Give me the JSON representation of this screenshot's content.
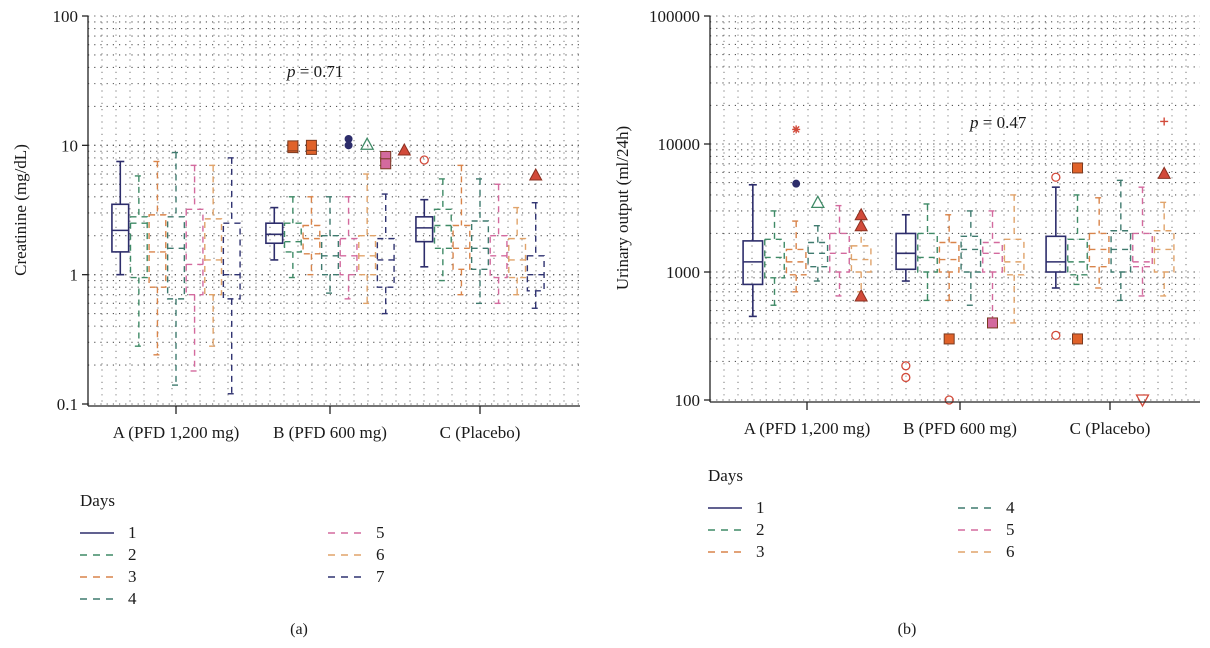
{
  "colors": {
    "day1": "#2d2d6b",
    "day2": "#3f8a66",
    "day3": "#d9844a",
    "day4": "#3f7a6e",
    "day5": "#d36a9e",
    "day6": "#e0a36a",
    "day7": "#2f3270",
    "outlier_red": "#d24a3a",
    "outlier_orange": "#e0622a"
  },
  "chart_data": [
    {
      "type": "box",
      "panel": "(a)",
      "ylabel": "Creatinine (mg/dL)",
      "yscale": "log",
      "ylim": [
        0.1,
        100
      ],
      "yticks": [
        "0.1",
        "1",
        "10",
        "100"
      ],
      "categories": [
        "A (PFD 1,200 mg)",
        "B (PFD 600 mg)",
        "C (Placebo)"
      ],
      "annotation": "p = 0.71",
      "annotation_italic": "p",
      "annotation_rest": " = 0.71",
      "legend_title": "Days",
      "legend": [
        {
          "label": "1",
          "color_key": "day1",
          "dashed": false
        },
        {
          "label": "2",
          "color_key": "day2",
          "dashed": true
        },
        {
          "label": "3",
          "color_key": "day3",
          "dashed": true
        },
        {
          "label": "4",
          "color_key": "day4",
          "dashed": true
        },
        {
          "label": "5",
          "color_key": "day5",
          "dashed": true
        },
        {
          "label": "6",
          "color_key": "day6",
          "dashed": true
        },
        {
          "label": "7",
          "color_key": "day7",
          "dashed": true
        }
      ],
      "series": [
        {
          "name": "1",
          "boxes": [
            [
              1.0,
              1.5,
              2.2,
              3.5,
              7.5
            ],
            [
              1.3,
              1.75,
              2.05,
              2.5,
              3.3
            ],
            [
              1.15,
              1.8,
              2.3,
              2.8,
              3.8
            ]
          ]
        },
        {
          "name": "2",
          "boxes": [
            [
              0.28,
              0.95,
              2.5,
              2.8,
              5.8
            ],
            [
              0.95,
              1.5,
              1.8,
              2.5,
              4.0
            ],
            [
              0.9,
              1.6,
              2.4,
              3.2,
              5.5
            ]
          ]
        },
        {
          "name": "3",
          "boxes": [
            [
              0.24,
              0.8,
              1.5,
              2.9,
              7.5
            ],
            [
              1.0,
              1.45,
              1.9,
              2.4,
              4.0
            ],
            [
              0.7,
              1.1,
              1.6,
              2.4,
              7.0
            ]
          ]
        },
        {
          "name": "4",
          "boxes": [
            [
              0.14,
              0.65,
              1.6,
              2.8,
              8.8
            ],
            [
              0.72,
              1.0,
              1.4,
              2.0,
              4.0
            ],
            [
              0.6,
              1.1,
              1.6,
              2.6,
              5.5
            ]
          ]
        },
        {
          "name": "5",
          "boxes": [
            [
              0.18,
              0.7,
              1.2,
              3.2,
              7.0
            ],
            [
              0.65,
              1.0,
              1.4,
              1.9,
              4.0
            ],
            [
              0.6,
              0.95,
              1.4,
              2.0,
              5.0
            ]
          ]
        },
        {
          "name": "6",
          "boxes": [
            [
              0.28,
              0.7,
              1.3,
              2.7,
              7.0
            ],
            [
              0.6,
              1.0,
              1.4,
              2.0,
              6.0
            ],
            [
              0.7,
              0.95,
              1.3,
              1.9,
              3.3
            ]
          ]
        },
        {
          "name": "7",
          "boxes": [
            [
              0.12,
              0.65,
              1.0,
              2.5,
              8.0
            ],
            [
              0.5,
              0.8,
              1.3,
              1.9,
              4.2
            ],
            [
              0.55,
              0.75,
              1.0,
              1.4,
              3.6
            ]
          ]
        }
      ],
      "outliers": [
        {
          "group": 1,
          "day": 1,
          "y": 9.6,
          "shape": "square",
          "color_key": "outlier_orange"
        },
        {
          "group": 1,
          "day": 1,
          "y": 9.9,
          "shape": "square",
          "color_key": "outlier_orange"
        },
        {
          "group": 1,
          "day": 2,
          "y": 9.3,
          "shape": "square",
          "color_key": "outlier_orange"
        },
        {
          "group": 1,
          "day": 2,
          "y": 10.0,
          "shape": "square",
          "color_key": "outlier_orange"
        },
        {
          "group": 1,
          "day": 4,
          "y": 11.2,
          "shape": "circle",
          "color_key": "day1"
        },
        {
          "group": 1,
          "day": 4,
          "y": 10.0,
          "shape": "circle",
          "color_key": "day1"
        },
        {
          "group": 1,
          "day": 5,
          "y": 10.2,
          "shape": "triangle-open",
          "color_key": "day2"
        },
        {
          "group": 1,
          "day": 6,
          "y": 8.2,
          "shape": "square",
          "color_key": "day5"
        },
        {
          "group": 1,
          "day": 6,
          "y": 7.2,
          "shape": "square",
          "color_key": "day5"
        },
        {
          "group": 1,
          "day": 7,
          "y": 9.2,
          "shape": "triangle",
          "color_key": "outlier_red"
        },
        {
          "group": 2,
          "day": 0,
          "y": 7.7,
          "shape": "circle-open",
          "color_key": "outlier_red"
        },
        {
          "group": 2,
          "day": 6,
          "y": 5.9,
          "shape": "triangle",
          "color_key": "outlier_red"
        }
      ]
    },
    {
      "type": "box",
      "panel": "(b)",
      "ylabel": "Urinary output (ml/24h)",
      "yscale": "log",
      "ylim": [
        100,
        100000
      ],
      "yticks": [
        "100",
        "1000",
        "10000",
        "100000"
      ],
      "categories": [
        "A (PFD 1,200 mg)",
        "B (PFD 600 mg)",
        "C (Placebo)"
      ],
      "annotation": "p = 0.47",
      "annotation_italic": "p",
      "annotation_rest": " = 0.47",
      "legend_title": "Days",
      "legend": [
        {
          "label": "1",
          "color_key": "day1",
          "dashed": false
        },
        {
          "label": "2",
          "color_key": "day2",
          "dashed": true
        },
        {
          "label": "3",
          "color_key": "day3",
          "dashed": true
        },
        {
          "label": "4",
          "color_key": "day4",
          "dashed": true
        },
        {
          "label": "5",
          "color_key": "day5",
          "dashed": true
        },
        {
          "label": "6",
          "color_key": "day6",
          "dashed": true
        }
      ],
      "series": [
        {
          "name": "1",
          "boxes": [
            [
              450,
              800,
              1200,
              1750,
              4800
            ],
            [
              850,
              1050,
              1400,
              2000,
              2800
            ],
            [
              750,
              1000,
              1200,
              1900,
              4600
            ]
          ]
        },
        {
          "name": "2",
          "boxes": [
            [
              550,
              900,
              1300,
              1800,
              3000
            ],
            [
              600,
              1000,
              1300,
              2000,
              3400
            ],
            [
              800,
              950,
              1200,
              1800,
              4000
            ]
          ]
        },
        {
          "name": "3",
          "boxes": [
            [
              700,
              950,
              1200,
              1500,
              2500
            ],
            [
              600,
              1000,
              1250,
              1700,
              2800
            ],
            [
              750,
              1100,
              1500,
              2000,
              3800
            ]
          ]
        },
        {
          "name": "4",
          "boxes": [
            [
              850,
              1100,
              1400,
              1700,
              2300
            ],
            [
              550,
              1000,
              1500,
              1900,
              3000
            ],
            [
              600,
              1000,
              1500,
              2100,
              5200
            ]
          ]
        },
        {
          "name": "5",
          "boxes": [
            [
              650,
              1000,
              1400,
              2000,
              3300
            ],
            [
              400,
              1000,
              1400,
              1700,
              3000
            ],
            [
              650,
              1100,
              1200,
              2000,
              4600
            ]
          ]
        },
        {
          "name": "6",
          "boxes": [
            [
              700,
              1000,
              1250,
              1600,
              2800
            ],
            [
              400,
              950,
              1200,
              1800,
              4000
            ],
            [
              650,
              1000,
              1500,
              2100,
              3500
            ]
          ]
        }
      ],
      "outliers": [
        {
          "group": 0,
          "day": 2,
          "y": 13000,
          "shape": "star",
          "color_key": "outlier_red"
        },
        {
          "group": 0,
          "day": 2,
          "y": 4900,
          "shape": "circle",
          "color_key": "day1"
        },
        {
          "group": 0,
          "day": 3,
          "y": 3500,
          "shape": "triangle-open",
          "color_key": "day2"
        },
        {
          "group": 0,
          "day": 5,
          "y": 2800,
          "shape": "triangle",
          "color_key": "outlier_red"
        },
        {
          "group": 0,
          "day": 5,
          "y": 2300,
          "shape": "triangle",
          "color_key": "outlier_red"
        },
        {
          "group": 0,
          "day": 5,
          "y": 650,
          "shape": "triangle",
          "color_key": "outlier_red"
        },
        {
          "group": 1,
          "day": 0,
          "y": 185,
          "shape": "circle-open",
          "color_key": "outlier_red"
        },
        {
          "group": 1,
          "day": 0,
          "y": 150,
          "shape": "circle-open",
          "color_key": "outlier_red"
        },
        {
          "group": 1,
          "day": 2,
          "y": 300,
          "shape": "square",
          "color_key": "outlier_orange"
        },
        {
          "group": 1,
          "day": 2,
          "y": 100,
          "shape": "circle-open",
          "color_key": "outlier_red"
        },
        {
          "group": 1,
          "day": 4,
          "y": 400,
          "shape": "square",
          "color_key": "day5"
        },
        {
          "group": 2,
          "day": 0,
          "y": 5500,
          "shape": "circle-open",
          "color_key": "outlier_red"
        },
        {
          "group": 2,
          "day": 0,
          "y": 320,
          "shape": "circle-open",
          "color_key": "outlier_red"
        },
        {
          "group": 2,
          "day": 1,
          "y": 6500,
          "shape": "square",
          "color_key": "outlier_orange"
        },
        {
          "group": 2,
          "day": 1,
          "y": 300,
          "shape": "square",
          "color_key": "outlier_orange"
        },
        {
          "group": 2,
          "day": 4,
          "y": 100,
          "shape": "triangle-down-open",
          "color_key": "outlier_red"
        },
        {
          "group": 2,
          "day": 5,
          "y": 15000,
          "shape": "plus",
          "color_key": "outlier_red"
        },
        {
          "group": 2,
          "day": 5,
          "y": 5900,
          "shape": "triangle",
          "color_key": "outlier_red"
        }
      ]
    }
  ]
}
